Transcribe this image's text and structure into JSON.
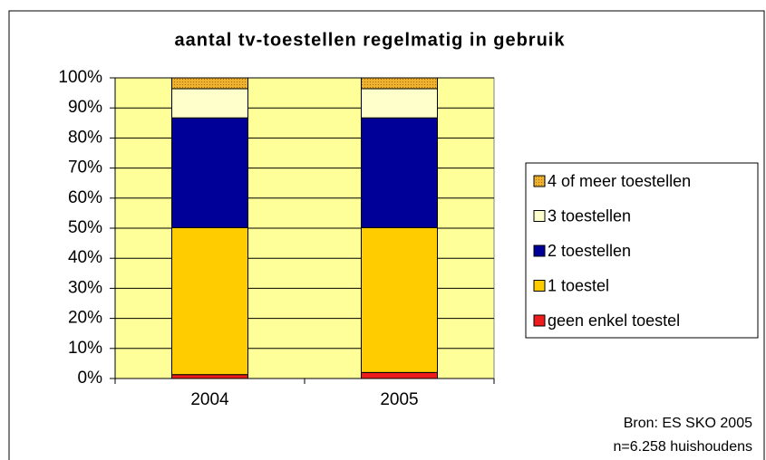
{
  "chart_data": {
    "type": "stacked_bar",
    "title": "aantal tv-toestellen regelmatig in gebruik",
    "categories": [
      "2004",
      "2005"
    ],
    "series": [
      {
        "name": "geen enkel toestel",
        "color": "#ee1c1c",
        "values": [
          1.3,
          2.0
        ]
      },
      {
        "name": "1 toestel",
        "color": "#ffcc00",
        "values": [
          48.9,
          48.2
        ]
      },
      {
        "name": "2 toestellen",
        "color": "#000099",
        "values": [
          36.5,
          36.5
        ]
      },
      {
        "name": "3 toestellen",
        "color": "#ffffcc",
        "values": [
          9.7,
          9.7
        ]
      },
      {
        "name": "4 of meer toestellen",
        "color": "#eeb22e",
        "values": [
          3.6,
          3.6
        ]
      }
    ],
    "ylim": [
      0,
      100
    ],
    "yticks": [
      {
        "value": 0,
        "label": "0%"
      },
      {
        "value": 10,
        "label": "10%"
      },
      {
        "value": 20,
        "label": "20%"
      },
      {
        "value": 30,
        "label": "30%"
      },
      {
        "value": 40,
        "label": "40%"
      },
      {
        "value": 50,
        "label": "50%"
      },
      {
        "value": 60,
        "label": "60%"
      },
      {
        "value": 70,
        "label": "70%"
      },
      {
        "value": 80,
        "label": "80%"
      },
      {
        "value": 90,
        "label": "90%"
      },
      {
        "value": 100,
        "label": "100%"
      }
    ],
    "grid": true,
    "legend": "right",
    "annotations": [
      "Bron: ES SKO 2005",
      "n=6.258 huishoudens"
    ]
  }
}
